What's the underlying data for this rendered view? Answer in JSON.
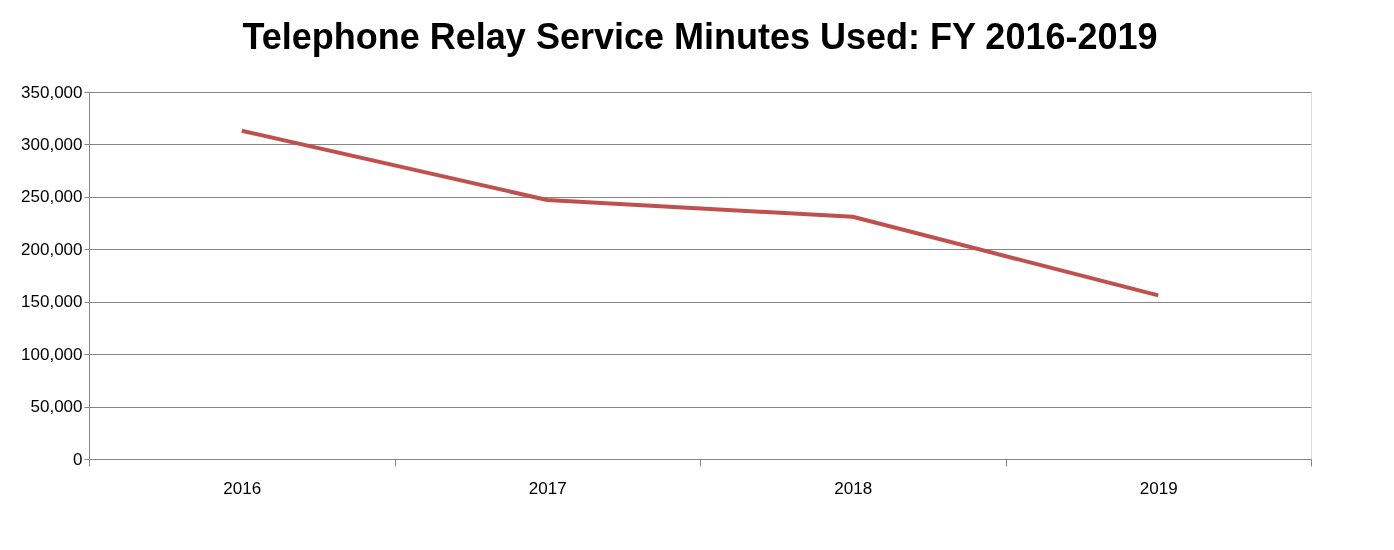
{
  "chart_data": {
    "type": "line",
    "title": "Telephone Relay Service Minutes Used: FY 2016-2019",
    "categories": [
      "2016",
      "2017",
      "2018",
      "2019"
    ],
    "series": [
      {
        "color": "#c0504d",
        "values": [
          313000,
          247000,
          231000,
          156000
        ]
      }
    ],
    "ylim": [
      0,
      350000
    ],
    "yticks": [
      0,
      {
        "value": 50000,
        "label": "50,000"
      },
      {
        "value": 100000,
        "label": "100,000"
      },
      {
        "value": 150000,
        "label": "150,000"
      },
      {
        "value": 200000,
        "label": "200,000"
      },
      {
        "value": 250000,
        "label": "250,000"
      },
      {
        "value": 300000,
        "label": "300,000"
      },
      {
        "value": 350000,
        "label": "350,000"
      }
    ],
    "grid": "y",
    "marker": "none",
    "line_style": "solid"
  }
}
